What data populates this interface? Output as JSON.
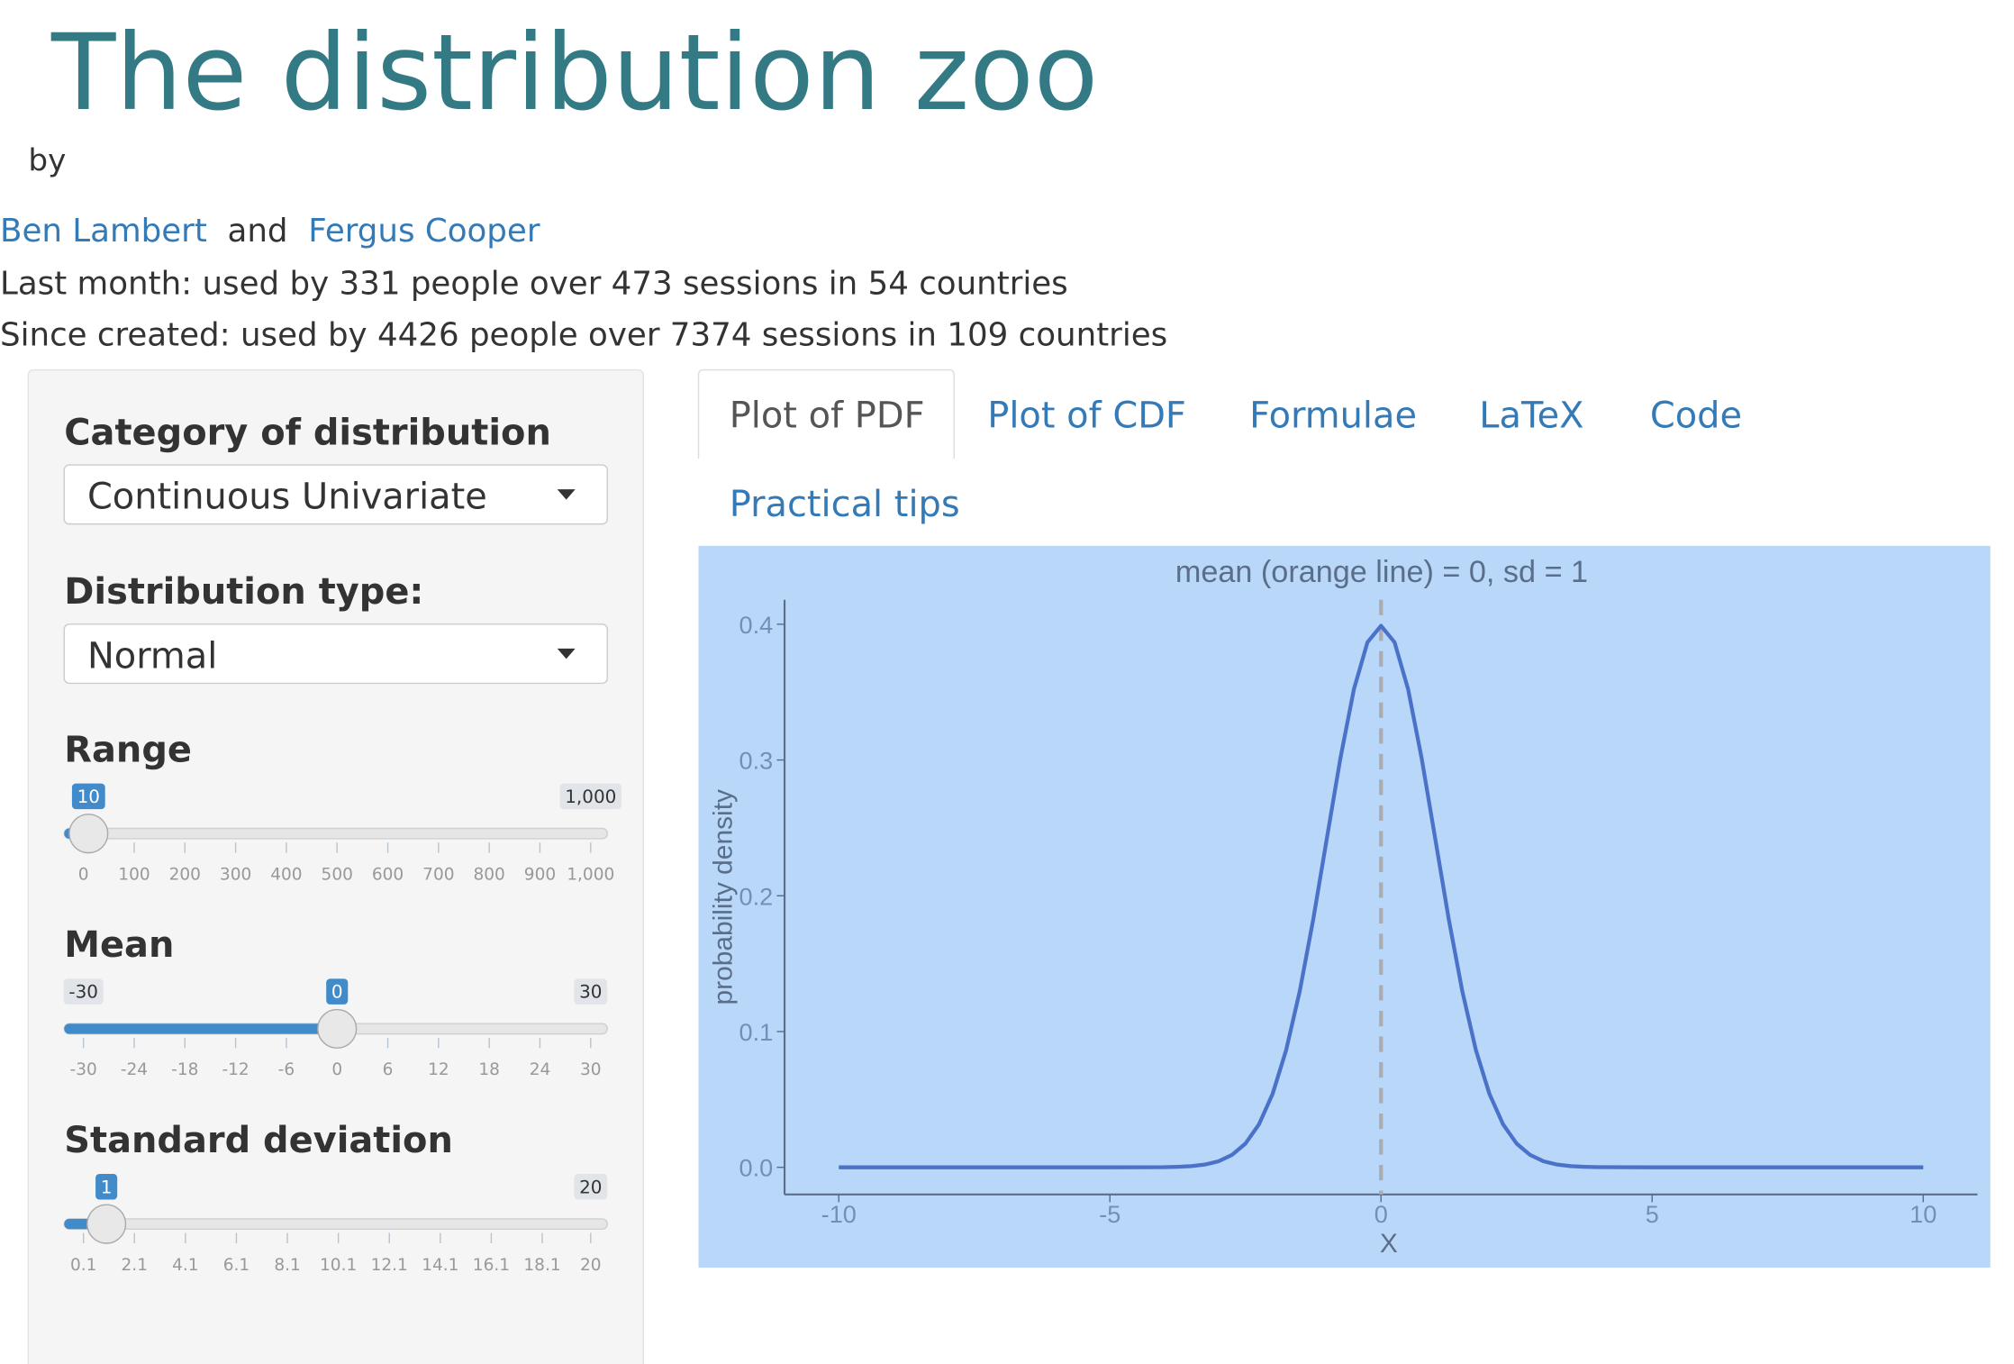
{
  "header": {
    "title": "The distribution zoo",
    "by": "by",
    "author1": "Ben Lambert",
    "and": "and",
    "author2": "Fergus Cooper",
    "last_month": "Last month: used by 331 people over 473 sessions in 54 countries",
    "since_created": "Since created: used by 4426 people over 7374 sessions in 109 countries"
  },
  "sidebar": {
    "category_label": "Category of distribution",
    "category_value": "Continuous Univariate",
    "type_label": "Distribution type:",
    "type_value": "Normal",
    "sliders": [
      {
        "label": "Range",
        "value": 10,
        "show_min": false,
        "ticks": [
          0,
          100,
          200,
          300,
          400,
          500,
          600,
          700,
          800,
          900,
          {
            "value": 1000,
            "label": "1,000"
          }
        ]
      },
      {
        "label": "Mean",
        "value": 0,
        "show_min": true,
        "ticks": [
          -30,
          -24,
          -18,
          -12,
          -6,
          0,
          6,
          12,
          18,
          24,
          30
        ]
      },
      {
        "label": "Standard deviation",
        "value": 1,
        "show_min": false,
        "ticks": [
          0.1,
          2.1,
          4.1,
          6.1,
          8.1,
          10.1,
          12.1,
          14.1,
          16.1,
          18.1,
          20
        ]
      }
    ]
  },
  "tabs": [
    "Plot of PDF",
    "Plot of CDF",
    "Formulae",
    "LaTeX",
    "Code",
    "Practical tips"
  ],
  "active_tab": 0,
  "chart_data": {
    "type": "line",
    "title": "mean (orange line) = 0, sd = 1",
    "x_label": "X",
    "y_label": "probability density",
    "x": [
      -10,
      -9,
      -8,
      -7,
      -6,
      -5,
      -4,
      -3.75,
      -3.5,
      -3.25,
      -3,
      -2.75,
      -2.5,
      -2.25,
      -2,
      -1.75,
      -1.5,
      -1.25,
      -1,
      -0.75,
      -0.5,
      -0.25,
      0,
      0.25,
      0.5,
      0.75,
      1,
      1.25,
      1.5,
      1.75,
      2,
      2.25,
      2.5,
      2.75,
      3,
      3.25,
      3.5,
      3.75,
      4,
      5,
      6,
      7,
      8,
      9,
      10
    ],
    "values": [
      0,
      0,
      0,
      0,
      0,
      0,
      0.0001,
      0.0004,
      0.0009,
      0.002,
      0.0044,
      0.0091,
      0.0175,
      0.0317,
      0.054,
      0.0863,
      0.1295,
      0.1826,
      0.242,
      0.3011,
      0.3521,
      0.3867,
      0.3989,
      0.3867,
      0.3521,
      0.3011,
      0.242,
      0.1826,
      0.1295,
      0.0863,
      0.054,
      0.0317,
      0.0175,
      0.0091,
      0.0044,
      0.002,
      0.0009,
      0.0004,
      0.0001,
      0,
      0,
      0,
      0,
      0,
      0
    ],
    "color": "#4a72c8",
    "mean_line": 0,
    "mean_line_color": "#a9acb0",
    "background": "#b9d7f9",
    "xlim": [
      -11,
      11
    ],
    "xticks": [
      -10,
      -5,
      0,
      5,
      10
    ],
    "ylim": [
      -0.02,
      0.418
    ],
    "yticks": [
      {
        "value": 0,
        "label": "0.0"
      },
      0.1,
      0.2,
      0.3,
      0.4
    ]
  }
}
